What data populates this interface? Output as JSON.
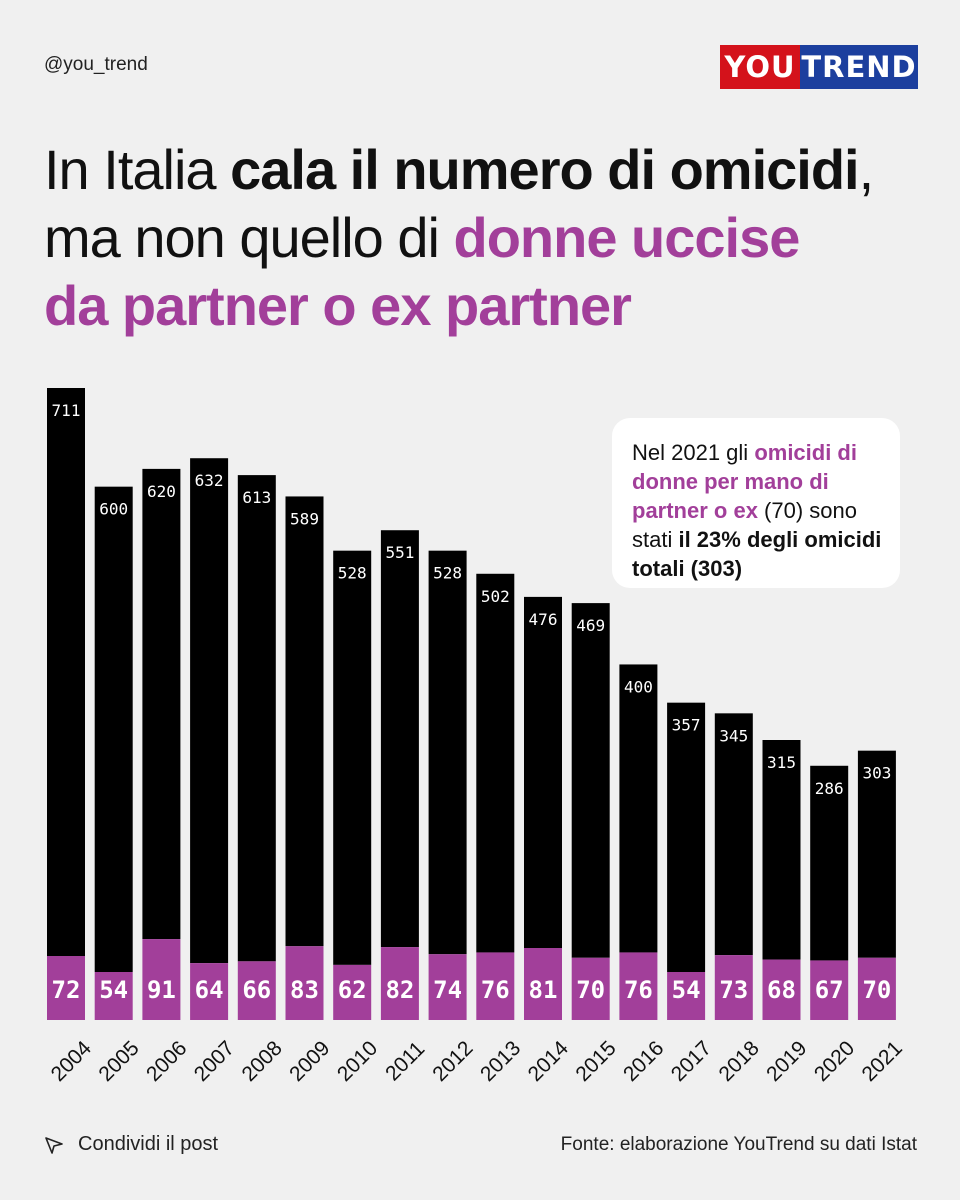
{
  "header": {
    "handle": "@you_trend",
    "logo_you": "YOU",
    "logo_trend": "TREND"
  },
  "title": {
    "part1": "In Italia ",
    "part2_bold": "cala il numero di omicidi",
    "part3": ",",
    "part4": "ma non quello di ",
    "part5_highlight": "donne uccise",
    "part6_highlight": "da partner o ex partner"
  },
  "callout": {
    "t1": "Nel 2021 gli ",
    "t2_highlight": "omicidi di donne per mano di partner o ex",
    "t3": " (70) sono stati ",
    "t4_bold": "il 23% degli omicidi totali (303)"
  },
  "chart_data": {
    "type": "bar",
    "stacked": true,
    "categories": [
      "2004",
      "2005",
      "2006",
      "2007",
      "2008",
      "2009",
      "2010",
      "2011",
      "2012",
      "2013",
      "2014",
      "2015",
      "2016",
      "2017",
      "2018",
      "2019",
      "2020",
      "2021"
    ],
    "series": [
      {
        "name": "",
        "color": "#a23f9a",
        "values": [
          72,
          54,
          91,
          64,
          66,
          83,
          62,
          82,
          74,
          76,
          81,
          70,
          76,
          54,
          73,
          68,
          67,
          70
        ]
      },
      {
        "name": "",
        "color": "#000000",
        "values": [
          639,
          546,
          529,
          568,
          547,
          506,
          466,
          469,
          454,
          426,
          395,
          399,
          324,
          303,
          272,
          247,
          219,
          233
        ]
      }
    ],
    "totals": [
      711,
      600,
      620,
      632,
      613,
      589,
      528,
      551,
      528,
      502,
      476,
      469,
      400,
      357,
      345,
      315,
      286,
      303
    ],
    "ylim": [
      0,
      711
    ],
    "grid": false,
    "xlabel": "",
    "ylabel": ""
  },
  "footer": {
    "share_label": "Condividi il post",
    "source": "Fonte: elaborazione YouTrend su dati Istat"
  }
}
